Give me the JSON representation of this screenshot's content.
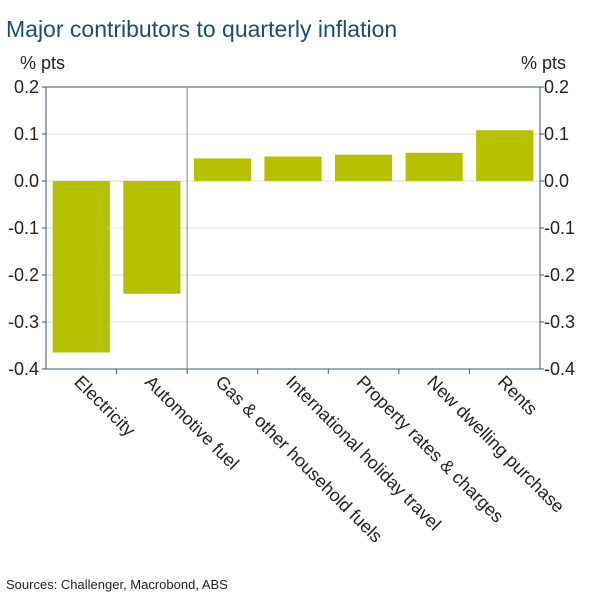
{
  "title": "Major contributors to quarterly inflation",
  "source": "Sources: Challenger, Macrobond, ABS",
  "colors": {
    "bar": "#b5c100",
    "title": "#1f4e6b",
    "axis": "#3c5a73",
    "grid": "#dddddd"
  },
  "chart_data": {
    "type": "bar",
    "title": "Major contributors to quarterly inflation",
    "ylabel_left": "% pts",
    "ylabel_right": "% pts",
    "categories": [
      "Electricity",
      "Automotive fuel",
      "Gas & other household fuels",
      "International holiday travel",
      "Property rates & charges",
      "New dwelling purchase",
      "Rents"
    ],
    "values": [
      -0.365,
      -0.24,
      0.048,
      0.052,
      0.056,
      0.06,
      0.108
    ],
    "ylim": [
      -0.4,
      0.2
    ],
    "yticks": [
      0.2,
      0.1,
      0.0,
      -0.1,
      -0.2,
      -0.3,
      -0.4
    ],
    "ytick_labels": [
      "0.2",
      "0.1",
      "0.0",
      "-0.1",
      "-0.2",
      "-0.3",
      "-0.4"
    ],
    "grid": true,
    "legend": "none"
  }
}
